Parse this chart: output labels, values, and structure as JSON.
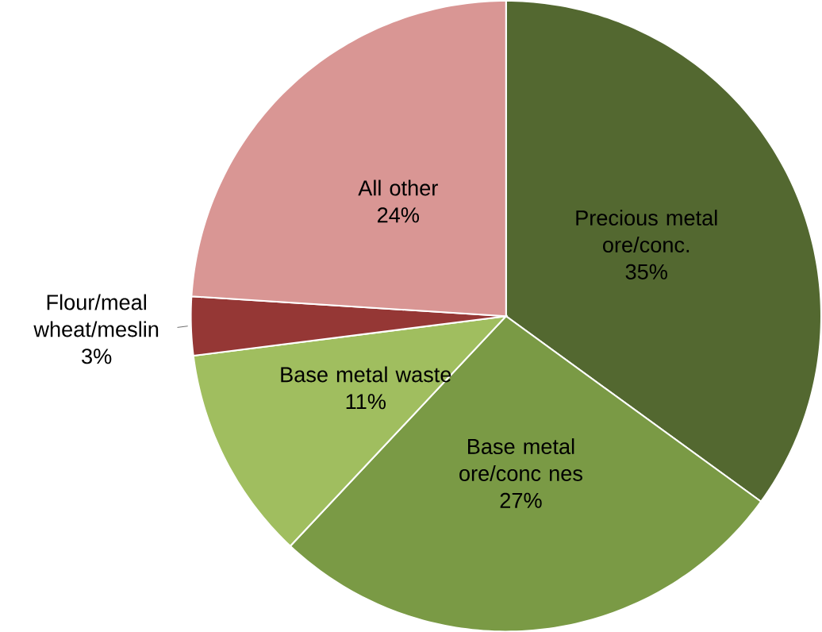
{
  "chart_data": {
    "type": "pie",
    "categories": [
      "Precious metal ore/conc.",
      "Base metal ore/conc nes",
      "Base metal waste",
      "Flour/meal wheat/meslin",
      "All other"
    ],
    "values": [
      35,
      27,
      11,
      3,
      24
    ],
    "value_labels": [
      "35%",
      "27%",
      "11%",
      "3%",
      "24%"
    ],
    "colors": [
      "#536830",
      "#7a9a45",
      "#a0be5f",
      "#953735",
      "#d99694"
    ]
  }
}
